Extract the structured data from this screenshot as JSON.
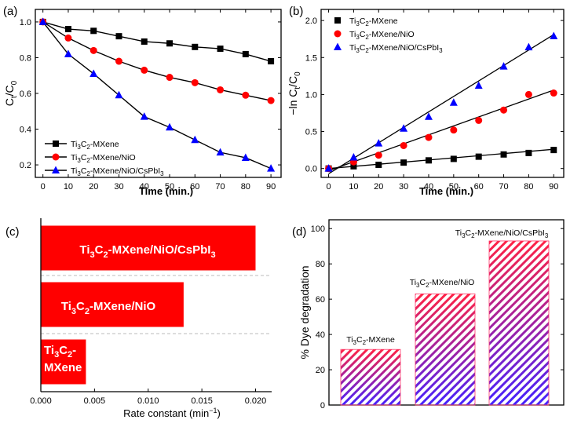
{
  "chart_data": [
    {
      "panel": "(a)",
      "type": "line",
      "xlabel": "Time (min.)",
      "ylabel": "Ct/C0",
      "xlim": [
        -3,
        94
      ],
      "ylim": [
        0.13,
        1.07
      ],
      "xticks": [
        0,
        10,
        20,
        30,
        40,
        50,
        60,
        70,
        80,
        90
      ],
      "yticks": [
        0.2,
        0.4,
        0.6,
        0.8,
        1.0
      ],
      "ytick_labels": [
        "0.2",
        "0.4",
        "0.6",
        "0.8",
        "1.0"
      ],
      "legend_position": "bottom-left",
      "series": [
        {
          "name": "Ti3C2-MXene",
          "marker": "square",
          "color": "#000000",
          "x": [
            0,
            10,
            20,
            30,
            40,
            50,
            60,
            70,
            80,
            90
          ],
          "y": [
            1.0,
            0.96,
            0.95,
            0.92,
            0.89,
            0.88,
            0.86,
            0.85,
            0.82,
            0.78
          ]
        },
        {
          "name": "Ti3C2-MXene/NiO",
          "marker": "circle",
          "color": "#ff0000",
          "x": [
            0,
            10,
            20,
            30,
            40,
            50,
            60,
            70,
            80,
            90
          ],
          "y": [
            1.0,
            0.91,
            0.84,
            0.78,
            0.73,
            0.69,
            0.66,
            0.62,
            0.59,
            0.56
          ]
        },
        {
          "name": "Ti3C2-MXene/NiO/CsPbI3",
          "marker": "triangle",
          "color": "#0000ff",
          "x": [
            0,
            10,
            20,
            30,
            40,
            50,
            60,
            70,
            80,
            90
          ],
          "y": [
            1.0,
            0.82,
            0.71,
            0.59,
            0.47,
            0.41,
            0.34,
            0.27,
            0.24,
            0.18
          ]
        }
      ]
    },
    {
      "panel": "(b)",
      "type": "scatter",
      "xlabel": "Time (min.)",
      "ylabel": "-ln Ct/C0",
      "xlim": [
        -3,
        94
      ],
      "ylim": [
        -0.12,
        2.15
      ],
      "xticks": [
        0,
        10,
        20,
        30,
        40,
        50,
        60,
        70,
        80,
        90
      ],
      "yticks": [
        0.0,
        0.5,
        1.0,
        1.5,
        2.0
      ],
      "ytick_labels": [
        "0.0",
        "0.5",
        "1.0",
        "1.5",
        "2.0"
      ],
      "legend_position": "top-left",
      "fit_lines": true,
      "series": [
        {
          "name": "Ti3C2-MXene",
          "marker": "square",
          "color": "#000000",
          "x": [
            0,
            10,
            20,
            30,
            40,
            50,
            60,
            70,
            80,
            90
          ],
          "y": [
            0.0,
            0.03,
            0.05,
            0.08,
            0.11,
            0.13,
            0.16,
            0.19,
            0.21,
            0.25
          ],
          "fit": [
            0.0,
            0.26
          ]
        },
        {
          "name": "Ti3C2-MXene/NiO",
          "marker": "circle",
          "color": "#ff0000",
          "x": [
            0,
            10,
            20,
            30,
            40,
            50,
            60,
            70,
            80,
            90
          ],
          "y": [
            0.0,
            0.09,
            0.18,
            0.31,
            0.42,
            0.52,
            0.65,
            0.79,
            1.0,
            1.02
          ],
          "fit": [
            -0.03,
            1.06
          ]
        },
        {
          "name": "Ti3C2-MXene/NiO/CsPbI3",
          "marker": "triangle",
          "color": "#0000ff",
          "x": [
            0,
            10,
            20,
            30,
            40,
            50,
            60,
            70,
            80,
            90
          ],
          "y": [
            0.0,
            0.15,
            0.34,
            0.54,
            0.7,
            0.89,
            1.12,
            1.38,
            1.64,
            1.79
          ],
          "fit": [
            -0.07,
            1.81
          ]
        }
      ]
    },
    {
      "panel": "(c)",
      "type": "bar",
      "orientation": "horizontal",
      "xlabel": "Rate constant (min−1)",
      "xlim": [
        0,
        0.0215
      ],
      "xticks": [
        0.0,
        0.005,
        0.01,
        0.015,
        0.02
      ],
      "xtick_labels": [
        "0.000",
        "0.005",
        "0.010",
        "0.015",
        "0.020"
      ],
      "bar_color": "#ff0000",
      "categories": [
        "Ti3C2-MXene/NiO/CsPbI3",
        "Ti3C2-MXene/NiO",
        "Ti3C2-MXene"
      ],
      "values": [
        0.02,
        0.0133,
        0.0042
      ]
    },
    {
      "panel": "(d)",
      "type": "bar",
      "ylabel": "% Dye degradation",
      "ylim": [
        0,
        105
      ],
      "yticks": [
        0,
        20,
        40,
        60,
        80,
        100
      ],
      "ytick_labels": [
        "0",
        "20",
        "40",
        "60",
        "80",
        "100"
      ],
      "fill": "hatched gradient",
      "colors": [
        "#ff2244",
        "#4422ff"
      ],
      "categories": [
        "Ti3C2-MXene",
        "Ti3C2-MXene/NiO",
        "Ti3C2-MXene/NiO/CsPbI3"
      ],
      "values": [
        31.5,
        63,
        93
      ]
    }
  ]
}
